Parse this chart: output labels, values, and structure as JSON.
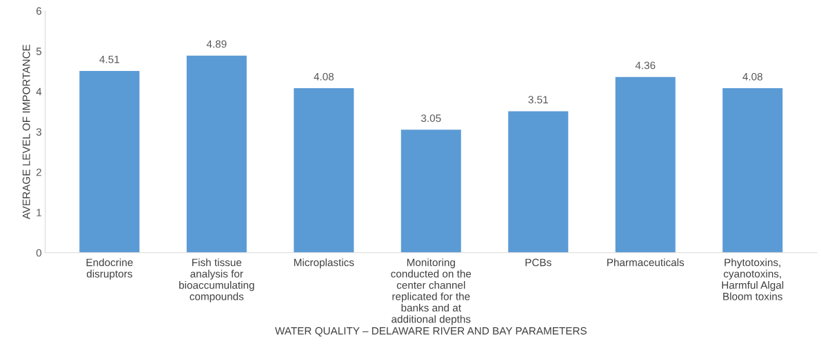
{
  "chart_data": {
    "type": "bar",
    "xlabel": "WATER QUALITY – DELAWARE RIVER AND BAY PARAMETERS",
    "ylabel": "AVERAGE LEVEL OF IMPORTANCE",
    "categories": [
      "Endocrine disruptors",
      "Fish tissue analysis for bioaccumulating compounds",
      "Microplastics",
      "Monitoring conducted on the center channel replicated for the banks and at additional depths",
      "PCBs",
      "Pharmaceuticals",
      "Phytotoxins, cyanotoxins, Harmful Algal Bloom toxins"
    ],
    "values": [
      4.51,
      4.89,
      4.08,
      3.05,
      3.51,
      4.36,
      4.08
    ],
    "color": "#5b9bd5",
    "ylim": [
      0,
      6
    ],
    "yticks": [
      0,
      1,
      2,
      3,
      4,
      5,
      6
    ],
    "grid": false,
    "data_labels": true
  }
}
